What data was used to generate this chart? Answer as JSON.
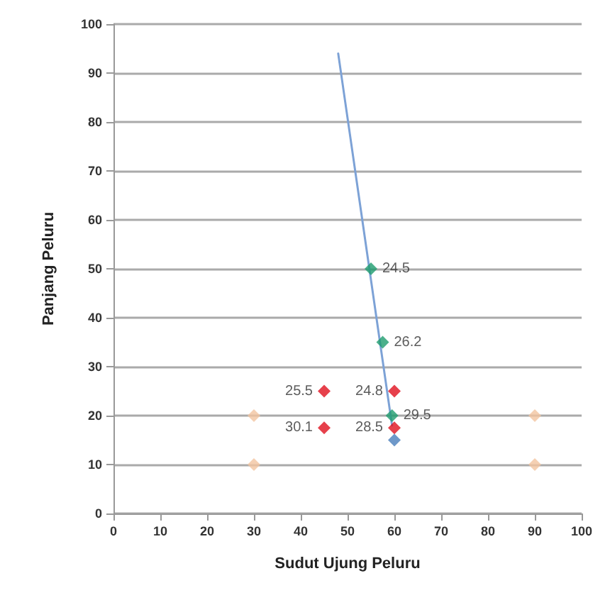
{
  "chart_data": {
    "type": "scatter",
    "xlabel": "Sudut Ujung Peluru",
    "ylabel": "Panjang Peluru",
    "xlim": [
      0,
      100
    ],
    "xticks": [
      0,
      10,
      20,
      30,
      40,
      50,
      60,
      70,
      80,
      90,
      100
    ],
    "ylim": [
      0,
      100
    ],
    "yticks": [
      0,
      10,
      20,
      30,
      40,
      50,
      60,
      70,
      80,
      90,
      100
    ],
    "grid": "y",
    "marker": "diamond",
    "series": [
      {
        "color": "#f2c4a0",
        "x": [
          30,
          30,
          90,
          90
        ],
        "values": [
          20,
          10,
          20,
          10
        ]
      },
      {
        "color": "#e0101e",
        "x": [
          45,
          45,
          60,
          60
        ],
        "values": [
          25,
          17.5,
          25,
          17.5
        ]
      },
      {
        "color": "#4a7ebb",
        "x": [
          60
        ],
        "values": [
          15
        ]
      },
      {
        "color": "#1e9c6e",
        "x": [
          55,
          57.5,
          59.5
        ],
        "values": [
          50,
          35,
          20
        ]
      },
      {
        "type": "line",
        "color": "#7da2d6",
        "x": [
          48,
          59.5
        ],
        "values": [
          94,
          18
        ],
        "marker": "none"
      }
    ],
    "annotations": [
      {
        "text": "25.5",
        "x": 45,
        "y": 25
      },
      {
        "text": "30.1",
        "x": 45,
        "y": 17.5
      },
      {
        "text": "24.8",
        "x": 60,
        "y": 25
      },
      {
        "text": "28.5",
        "x": 60,
        "y": 17.5
      },
      {
        "text": "24.5",
        "x": 55,
        "y": 50
      },
      {
        "text": "26.2",
        "x": 57.5,
        "y": 35
      },
      {
        "text": "29.5",
        "x": 59.5,
        "y": 20
      }
    ]
  }
}
